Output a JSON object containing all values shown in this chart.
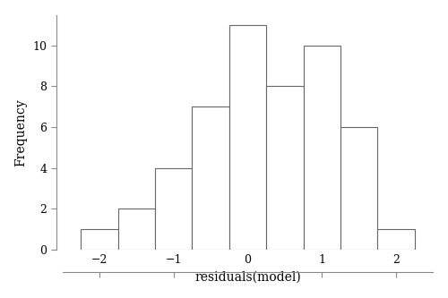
{
  "title": "",
  "xlabel": "residuals(model)",
  "ylabel": "Frequency",
  "bar_centers": [
    -2.0,
    -1.5,
    -1.0,
    -0.5,
    0.0,
    0.5,
    1.0,
    1.5,
    2.0
  ],
  "bar_heights": [
    1,
    2,
    4,
    7,
    11,
    8,
    10,
    6,
    1
  ],
  "bar_width": 0.5,
  "bar_color": "#ffffff",
  "bar_edgecolor": "#666666",
  "xlim": [
    -2.5,
    2.5
  ],
  "ylim": [
    0,
    11.5
  ],
  "yticks": [
    0,
    2,
    4,
    6,
    8,
    10
  ],
  "xticks": [
    -2,
    -1,
    0,
    1,
    2
  ],
  "background_color": "#ffffff",
  "bar_linewidth": 0.8,
  "spine_color": "#888888",
  "tick_label_fontsize": 9,
  "axis_label_fontsize": 10
}
